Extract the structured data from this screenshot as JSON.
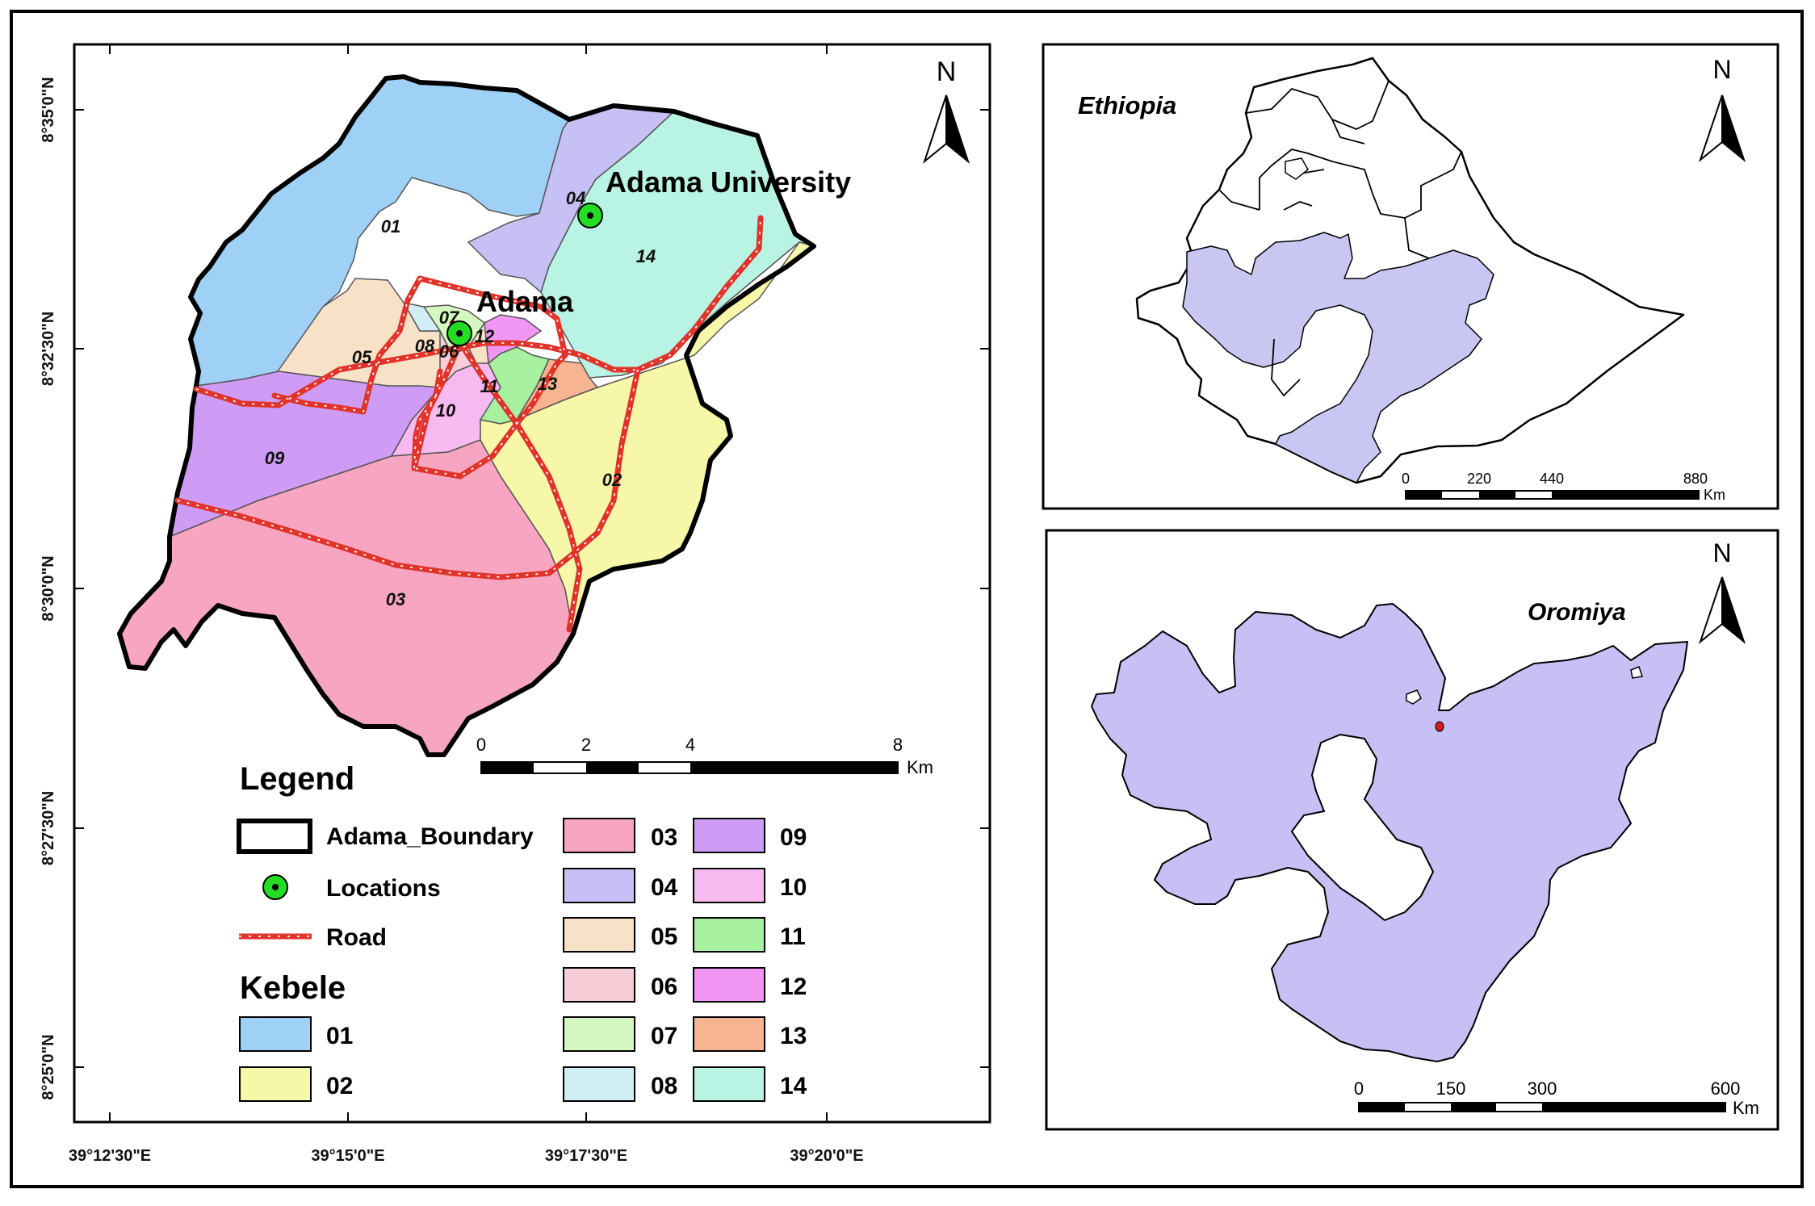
{
  "map": {
    "north_label": "N",
    "place_labels": {
      "adama": "Adama",
      "adama_university": "Adama University"
    },
    "coordinates": {
      "lat": [
        "8°35'0\"N",
        "8°32'30\"N",
        "8°30'0\"N",
        "8°27'30\"N",
        "8°25'0\"N"
      ],
      "lon": [
        "39°12'30\"E",
        "39°15'0\"E",
        "39°17'30\"E",
        "39°20'0\"E"
      ]
    },
    "scale": {
      "ticks": [
        "0",
        "2",
        "4",
        "8"
      ],
      "unit": "Km"
    },
    "kebele_labels": [
      "01",
      "02",
      "03",
      "04",
      "05",
      "06",
      "07",
      "08",
      "09",
      "10",
      "11",
      "12",
      "13",
      "14"
    ]
  },
  "legend": {
    "title": "Legend",
    "boundary": "Adama_Boundary",
    "locations": "Locations",
    "road": "Road",
    "kebele_title": "Kebele",
    "kebeles": [
      {
        "id": "01",
        "color": "#9fd1f7"
      },
      {
        "id": "02",
        "color": "#f7f7a9"
      },
      {
        "id": "03",
        "color": "#f7a5c0"
      },
      {
        "id": "04",
        "color": "#c6c0f4"
      },
      {
        "id": "05",
        "color": "#f7e2c8"
      },
      {
        "id": "06",
        "color": "#f7ced8"
      },
      {
        "id": "07",
        "color": "#d5f7c0"
      },
      {
        "id": "08",
        "color": "#d2eef5"
      },
      {
        "id": "09",
        "color": "#cf9cf5"
      },
      {
        "id": "10",
        "color": "#f7baf0"
      },
      {
        "id": "11",
        "color": "#a6f0a0"
      },
      {
        "id": "12",
        "color": "#f196f3"
      },
      {
        "id": "13",
        "color": "#f7b490"
      },
      {
        "id": "14",
        "color": "#b9f3e4"
      }
    ]
  },
  "inset_ethiopia": {
    "title": "Ethiopia",
    "north_label": "N",
    "scale": {
      "ticks": [
        "0",
        "220",
        "440",
        "880"
      ],
      "unit": "Km"
    },
    "fill_color": "#c9c7f2"
  },
  "inset_oromiya": {
    "title": "Oromiya",
    "north_label": "N",
    "scale": {
      "ticks": [
        "0",
        "150",
        "300",
        "600"
      ],
      "unit": "Km"
    },
    "fill_color": "#c6c0f4",
    "marker_color": "#d81b1b"
  },
  "colors": {
    "road": "#e0342b",
    "location_fill": "#22dd22",
    "boundary": "#000000"
  }
}
